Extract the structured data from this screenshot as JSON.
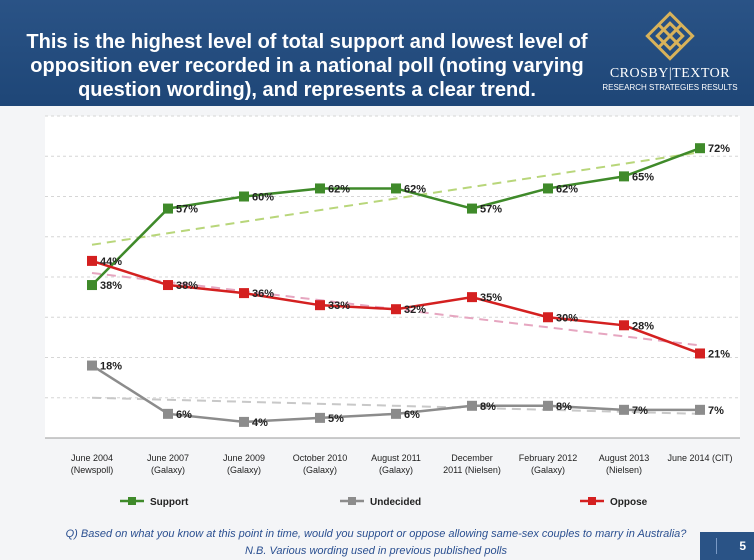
{
  "header": {
    "title_line1": "This is the highest level of total support and lowest level of",
    "title_line2": "opposition ever recorded in a national poll (noting varying",
    "title_line3": "question wording), and represents a clear trend.",
    "logo_name": "CROSBY|TEXTOR",
    "logo_sub": "RESEARCH STRATEGIES RESULTS"
  },
  "footer": {
    "question": "Q) Based on what you know at this point in time, would you support or oppose allowing same-sex couples to marry in Australia?",
    "note": "N.B. Various wording used in previous published polls",
    "page_number": "5"
  },
  "colors": {
    "header_bg": "#1e4677",
    "support": "#3f8a2a",
    "oppose": "#d42020",
    "undecided": "#8c8c8c",
    "support_trend": "#b8d67a",
    "oppose_trend": "#e6a6c0",
    "undecided_trend": "#c8c8c8"
  },
  "chart_data": {
    "type": "line",
    "categories": [
      [
        "June 2004",
        "(Newspoll)"
      ],
      [
        "June 2007",
        "(Galaxy)"
      ],
      [
        "June 2009",
        "(Galaxy)"
      ],
      [
        "October 2010",
        "(Galaxy)"
      ],
      [
        "August 2011",
        "(Galaxy)"
      ],
      [
        "December",
        "2011 (Nielsen)"
      ],
      [
        "February 2012",
        "(Galaxy)"
      ],
      [
        "August 2013",
        "(Nielsen)"
      ],
      [
        "June 2014 (CIT)",
        ""
      ]
    ],
    "series": [
      {
        "name": "Support",
        "values": [
          38,
          57,
          60,
          62,
          62,
          57,
          62,
          65,
          72
        ],
        "labels": [
          "38%",
          "57%",
          "60%",
          "62%",
          "62%",
          "57%",
          "62%",
          "65%",
          "72%"
        ],
        "color": "support",
        "marker": "square"
      },
      {
        "name": "Undecided",
        "values": [
          18,
          6,
          4,
          5,
          6,
          8,
          8,
          7,
          7
        ],
        "labels": [
          "18%",
          "6%",
          "4%",
          "5%",
          "6%",
          "8%",
          "8%",
          "7%",
          "7%"
        ],
        "color": "undecided",
        "marker": "square"
      },
      {
        "name": "Oppose",
        "values": [
          44,
          38,
          36,
          33,
          32,
          35,
          30,
          28,
          21
        ],
        "labels": [
          "44%",
          "38%",
          "36%",
          "33%",
          "32%",
          "35%",
          "30%",
          "28%",
          "21%"
        ],
        "color": "oppose",
        "marker": "square"
      }
    ],
    "trendlines": [
      {
        "series": "Support",
        "start": 48,
        "end": 71,
        "color": "support_trend"
      },
      {
        "series": "Oppose",
        "start": 41,
        "end": 23,
        "color": "oppose_trend"
      },
      {
        "series": "Undecided",
        "start": 10,
        "end": 6,
        "color": "undecided_trend"
      }
    ],
    "ylim": [
      0,
      80
    ],
    "grid": true,
    "legend_position": "bottom"
  }
}
